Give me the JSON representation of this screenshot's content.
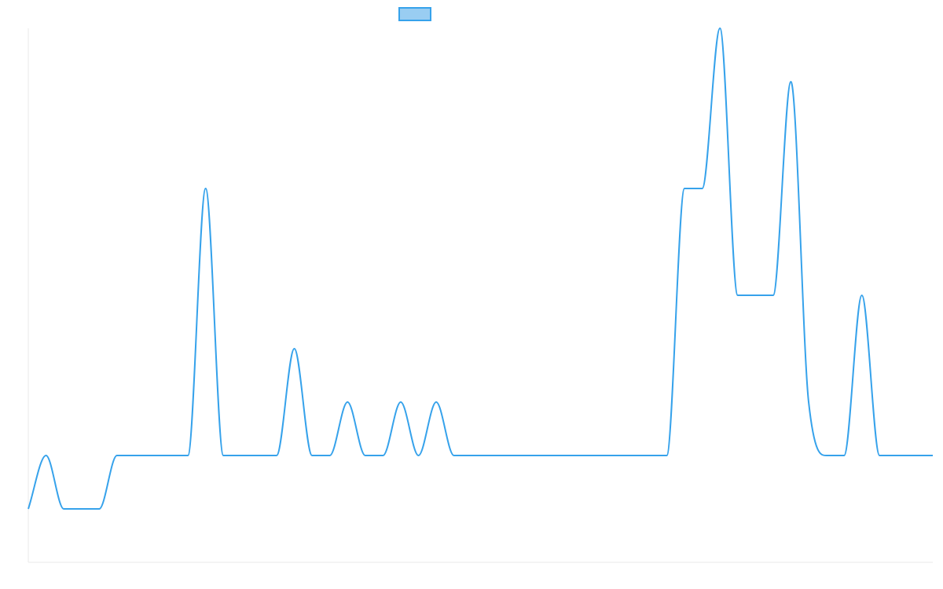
{
  "chart_data": {
    "type": "line",
    "title": "",
    "xlabel": "",
    "ylabel": "",
    "legend": {
      "position": "top-center",
      "entries": [
        {
          "name": "",
          "swatch_fill": "#99cdf2",
          "swatch_stroke": "#36a2eb"
        }
      ]
    },
    "grid": false,
    "ylim": [
      -2,
      8
    ],
    "x": [
      0,
      1,
      2,
      3,
      4,
      5,
      6,
      7,
      8,
      9,
      10,
      11,
      12,
      13,
      14,
      15,
      16,
      17,
      18,
      19,
      20,
      21,
      22,
      23,
      24,
      25,
      26,
      27,
      28,
      29,
      30,
      31,
      32,
      33,
      34,
      35,
      36,
      37,
      38,
      39,
      40,
      41,
      42,
      43,
      44,
      45,
      46,
      47,
      48,
      49,
      50,
      51
    ],
    "series": [
      {
        "name": "",
        "color": "#36a2eb",
        "values": [
          -1,
          0,
          -1,
          -1,
          -1,
          0,
          0,
          0,
          0,
          0,
          5,
          0,
          0,
          0,
          0,
          2,
          0,
          0,
          1,
          0,
          0,
          1,
          0,
          1,
          0,
          0,
          0,
          0,
          0,
          0,
          0,
          0,
          0,
          0,
          0,
          0,
          0,
          5,
          5,
          8,
          3,
          3,
          3,
          7,
          1,
          0,
          0,
          3,
          0,
          0,
          0,
          0
        ]
      }
    ]
  }
}
